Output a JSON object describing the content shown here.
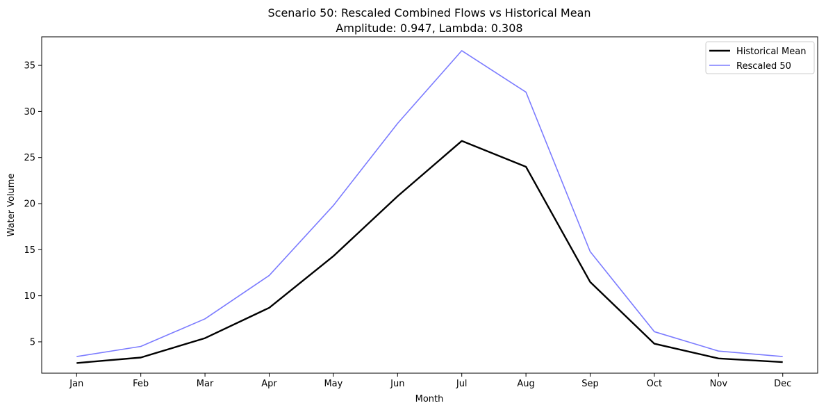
{
  "chart_data": {
    "type": "line",
    "title": "Scenario 50: Rescaled Combined Flows vs Historical Mean",
    "subtitle": "Amplitude: 0.947, Lambda: 0.308",
    "xlabel": "Month",
    "ylabel": "Water Volume",
    "categories": [
      "Jan",
      "Feb",
      "Mar",
      "Apr",
      "May",
      "Jun",
      "Jul",
      "Aug",
      "Sep",
      "Oct",
      "Nov",
      "Dec"
    ],
    "ylim": [
      1.6,
      38.1
    ],
    "yticks": [
      5,
      10,
      15,
      20,
      25,
      30,
      35
    ],
    "grid": false,
    "legend_position": "top-right",
    "series": [
      {
        "name": "Historical Mean",
        "color": "#000000",
        "values": [
          2.7,
          3.3,
          5.4,
          8.7,
          14.3,
          20.8,
          26.8,
          24.0,
          11.5,
          4.8,
          3.2,
          2.8
        ]
      },
      {
        "name": "Rescaled 50",
        "color": "#7b7bff",
        "values": [
          3.4,
          4.5,
          7.5,
          12.2,
          19.8,
          28.7,
          36.6,
          32.1,
          14.8,
          6.1,
          4.0,
          3.4
        ]
      }
    ]
  }
}
